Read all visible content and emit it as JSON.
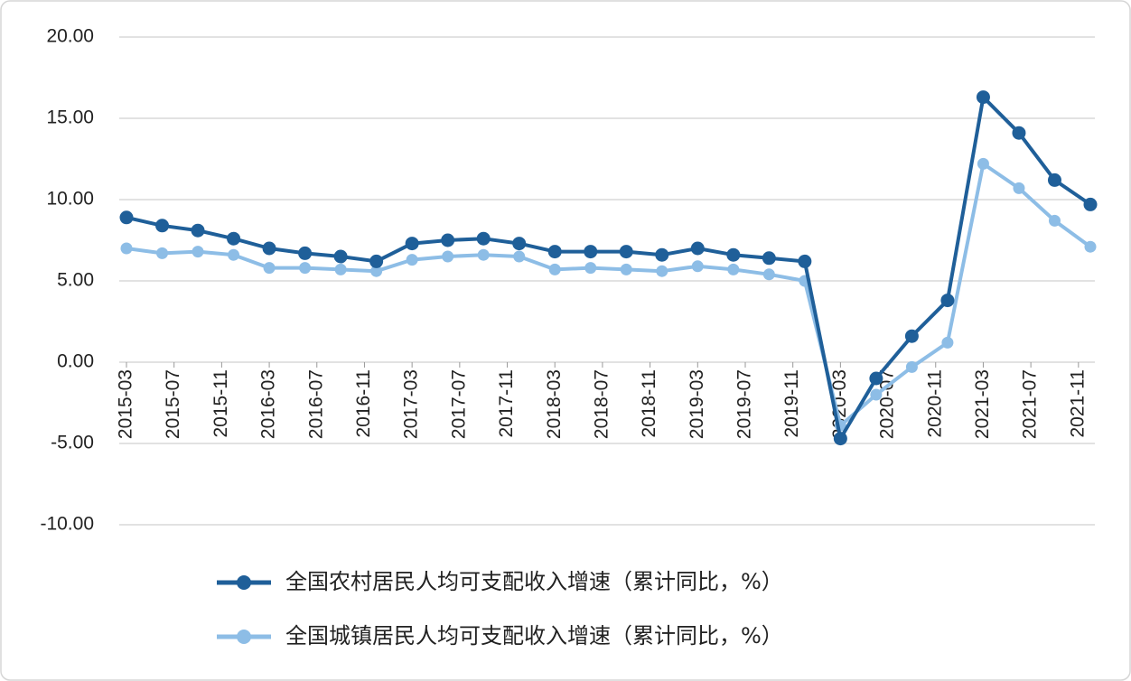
{
  "chart_data": {
    "type": "line",
    "x": [
      "2015-03",
      "2015-06",
      "2015-09",
      "2015-12",
      "2016-03",
      "2016-06",
      "2016-09",
      "2016-12",
      "2017-03",
      "2017-06",
      "2017-09",
      "2017-12",
      "2018-03",
      "2018-06",
      "2018-09",
      "2018-12",
      "2019-03",
      "2019-06",
      "2019-09",
      "2019-12",
      "2020-03",
      "2020-06",
      "2020-09",
      "2020-12",
      "2021-03",
      "2021-06",
      "2021-09",
      "2021-12"
    ],
    "xlim": [
      "2015-03",
      "2021-12"
    ],
    "xticks": [
      "2015-03",
      "2015-07",
      "2015-11",
      "2016-03",
      "2016-07",
      "2016-11",
      "2017-03",
      "2017-07",
      "2017-11",
      "2018-03",
      "2018-07",
      "2018-11",
      "2019-03",
      "2019-07",
      "2019-11",
      "2020-03",
      "2020-07",
      "2020-11",
      "2021-03",
      "2021-07",
      "2021-11"
    ],
    "ylim": [
      -10,
      20
    ],
    "yticks": [
      {
        "value": 20,
        "label": "20.00"
      },
      {
        "value": 15,
        "label": "15.00"
      },
      {
        "value": 10,
        "label": "10.00"
      },
      {
        "value": 5,
        "label": "5.00"
      },
      {
        "value": 0,
        "label": "0.00"
      },
      {
        "value": -5,
        "label": "-5.00"
      },
      {
        "value": -10,
        "label": "-10.00"
      }
    ],
    "grid": true,
    "legend": "bottom",
    "series": [
      {
        "name": "全国农村居民人均可支配收入增速（累计同比，%）",
        "color": "#1f5f99",
        "values": [
          8.9,
          8.4,
          8.1,
          7.6,
          7.0,
          6.7,
          6.5,
          6.2,
          7.3,
          7.5,
          7.6,
          7.3,
          6.8,
          6.8,
          6.8,
          6.6,
          7.0,
          6.6,
          6.4,
          6.2,
          -4.7,
          -1.0,
          1.6,
          3.8,
          16.3,
          14.1,
          11.2,
          9.7
        ]
      },
      {
        "name": "全国城镇居民人均可支配收入增速（累计同比，%）",
        "color": "#8dbde6",
        "values": [
          7.0,
          6.7,
          6.8,
          6.6,
          5.8,
          5.8,
          5.7,
          5.6,
          6.3,
          6.5,
          6.6,
          6.5,
          5.7,
          5.8,
          5.7,
          5.6,
          5.9,
          5.7,
          5.4,
          5.0,
          -3.9,
          -2.0,
          -0.3,
          1.2,
          12.2,
          10.7,
          8.7,
          7.1
        ]
      }
    ]
  }
}
